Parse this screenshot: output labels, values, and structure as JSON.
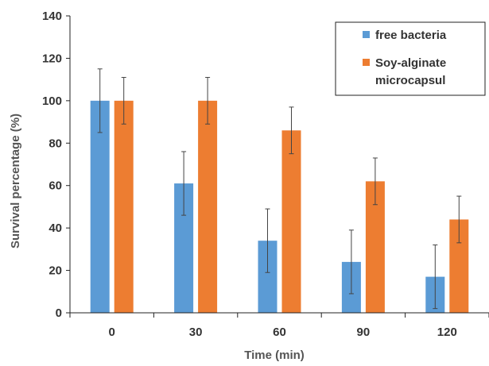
{
  "chart_data": {
    "type": "bar",
    "categories": [
      "0",
      "30",
      "60",
      "90",
      "120"
    ],
    "series": [
      {
        "name": "free bacteria",
        "color": "#5b9bd5",
        "values": [
          100,
          61,
          34,
          24,
          17
        ],
        "errors": [
          15,
          15,
          15,
          15,
          15
        ]
      },
      {
        "name": "Soy-alginate microcapsul",
        "color": "#ed7d31",
        "values": [
          100,
          100,
          86,
          62,
          44
        ],
        "errors": [
          11,
          11,
          11,
          11,
          11
        ]
      }
    ],
    "title": "",
    "xlabel": "Time (min)",
    "ylabel": "Survival percentage (%)",
    "ylim": [
      0,
      140
    ],
    "yticks": [
      0,
      20,
      40,
      60,
      80,
      100,
      120,
      140
    ],
    "legend_lines": [
      [
        "free bacteria"
      ],
      [
        "Soy-alginate",
        "microcapsul"
      ]
    ],
    "legend_position": "top-right",
    "grid": false
  }
}
